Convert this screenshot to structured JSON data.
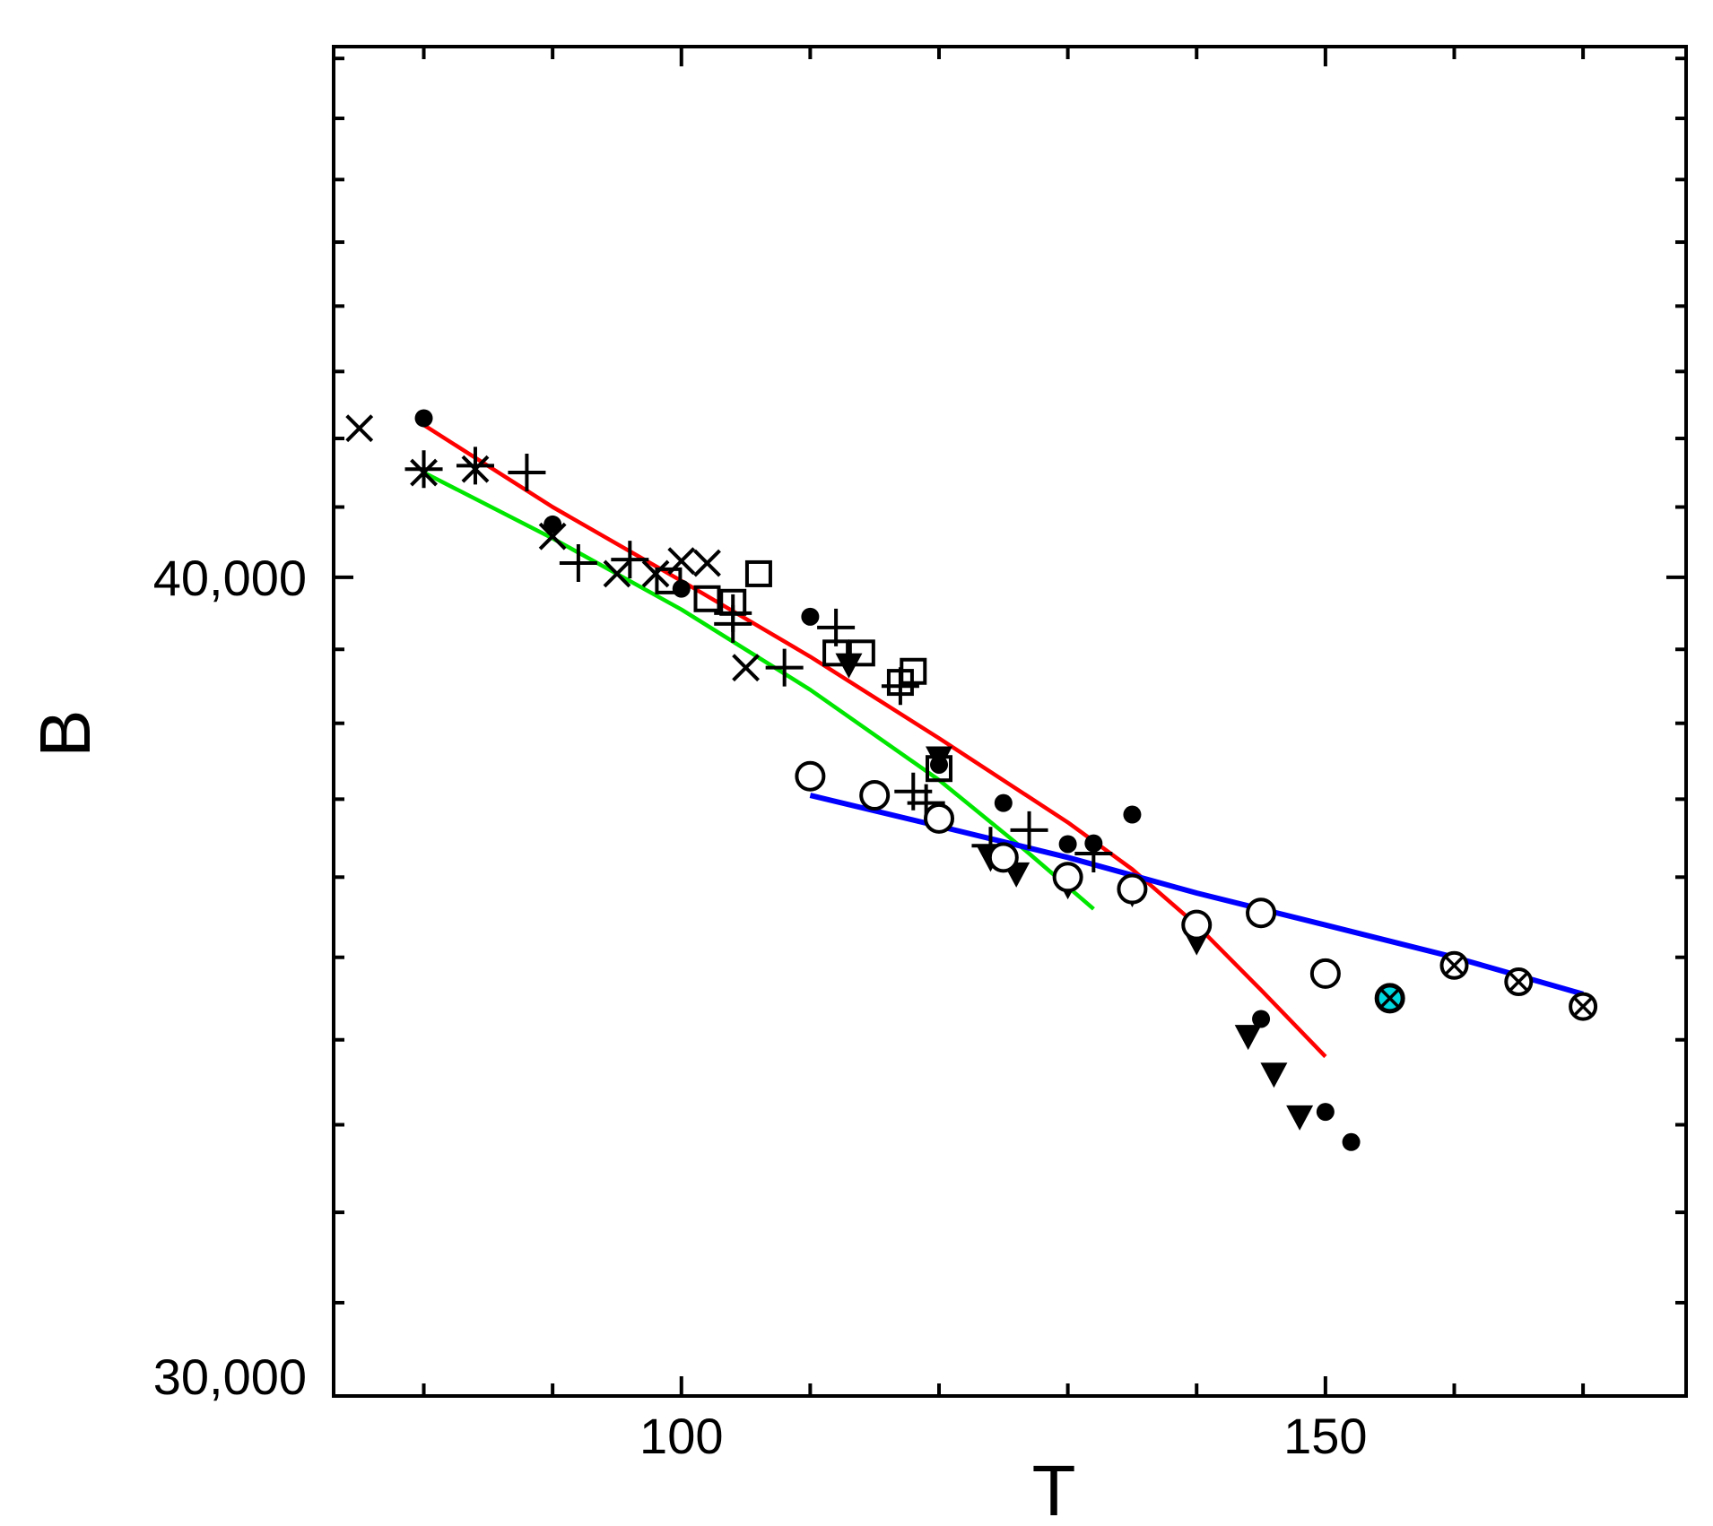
{
  "chart_data": {
    "type": "scatter",
    "title": "",
    "xlabel": "T",
    "ylabel": "B",
    "xlim": [
      73,
      178
    ],
    "ylim": [
      30000,
      48200
    ],
    "y_scale": "log",
    "grid": false,
    "xticks": [
      {
        "value": 100,
        "label": "100"
      },
      {
        "value": 150,
        "label": "150"
      }
    ],
    "yticks": [
      {
        "value": 40000,
        "label": "40,000"
      },
      {
        "value": 30000,
        "label": "30,000"
      }
    ],
    "colors": {
      "axis": "#000000",
      "red": "#ff0000",
      "green": "#00e600",
      "blue": "#0000ff",
      "cyan": "#00d8e0"
    },
    "lines": [
      {
        "color": "#ff0000",
        "points": [
          [
            80,
            42200
          ],
          [
            90,
            41000
          ],
          [
            100,
            39950
          ],
          [
            110,
            38900
          ],
          [
            120,
            37800
          ],
          [
            130,
            36700
          ],
          [
            135,
            36100
          ],
          [
            140,
            35400
          ],
          [
            145,
            34600
          ],
          [
            150,
            33800
          ]
        ]
      },
      {
        "color": "#00e600",
        "points": [
          [
            80,
            41500
          ],
          [
            90,
            40550
          ],
          [
            100,
            39550
          ],
          [
            110,
            38450
          ],
          [
            120,
            37250
          ],
          [
            127,
            36300
          ],
          [
            132,
            35600
          ]
        ]
      },
      {
        "color": "#0000ff",
        "points": [
          [
            110,
            37050
          ],
          [
            120,
            36650
          ],
          [
            130,
            36250
          ],
          [
            140,
            35800
          ],
          [
            150,
            35400
          ],
          [
            160,
            35000
          ],
          [
            170,
            34550
          ]
        ]
      }
    ],
    "series": [
      {
        "marker": "filled-circle",
        "points": [
          [
            80,
            42300
          ],
          [
            90,
            40750
          ],
          [
            100,
            39840
          ],
          [
            110,
            39450
          ],
          [
            120,
            37450
          ],
          [
            125,
            36950
          ],
          [
            130,
            36420
          ],
          [
            132,
            36430
          ],
          [
            135,
            36800
          ],
          [
            145,
            34250
          ],
          [
            150,
            33150
          ],
          [
            152,
            32800
          ]
        ]
      },
      {
        "marker": "x",
        "points": [
          [
            75,
            42150
          ],
          [
            80,
            41500
          ],
          [
            84,
            41550
          ],
          [
            90,
            40580
          ],
          [
            95,
            40050
          ],
          [
            98,
            40050
          ],
          [
            100,
            40230
          ],
          [
            102,
            40200
          ],
          [
            105,
            38750
          ]
        ]
      },
      {
        "marker": "plus",
        "points": [
          [
            80,
            41550
          ],
          [
            84,
            41600
          ],
          [
            88,
            41500
          ],
          [
            92,
            40200
          ],
          [
            96,
            40250
          ],
          [
            104,
            39500
          ],
          [
            104,
            39350
          ],
          [
            108,
            38750
          ],
          [
            112,
            39300
          ],
          [
            118,
            37100
          ],
          [
            119,
            36950
          ],
          [
            124,
            36400
          ],
          [
            127,
            36600
          ],
          [
            132,
            36300
          ],
          [
            117,
            38500
          ]
        ]
      },
      {
        "marker": "square",
        "points": [
          [
            99,
            39950
          ],
          [
            102,
            39700
          ],
          [
            104,
            39650
          ],
          [
            106,
            40050
          ],
          [
            112,
            38950
          ],
          [
            114,
            38950
          ],
          [
            117,
            38550
          ],
          [
            118,
            38700
          ],
          [
            120,
            37400
          ]
        ]
      },
      {
        "marker": "triangle-down",
        "points": [
          [
            113,
            38800
          ],
          [
            120,
            37550
          ],
          [
            124,
            36250
          ],
          [
            126,
            36050
          ],
          [
            130,
            35900
          ],
          [
            135,
            35800
          ],
          [
            140,
            35200
          ],
          [
            144,
            34050
          ],
          [
            146,
            33600
          ],
          [
            148,
            33100
          ]
        ]
      },
      {
        "marker": "open-circle",
        "points": [
          [
            110,
            37300
          ],
          [
            115,
            37050
          ],
          [
            120,
            36750
          ],
          [
            125,
            36250
          ],
          [
            130,
            36000
          ],
          [
            135,
            35850
          ],
          [
            140,
            35400
          ],
          [
            145,
            35550
          ],
          [
            150,
            34800
          ],
          [
            155,
            34500
          ]
        ]
      },
      {
        "marker": "circle-x",
        "points": [
          [
            155,
            34500
          ],
          [
            160,
            34900
          ],
          [
            165,
            34700
          ],
          [
            170,
            34400
          ]
        ]
      }
    ],
    "highlighted_point": {
      "marker": "circle-x",
      "x": 155,
      "y": 34500,
      "color": "#00d8e0"
    }
  }
}
